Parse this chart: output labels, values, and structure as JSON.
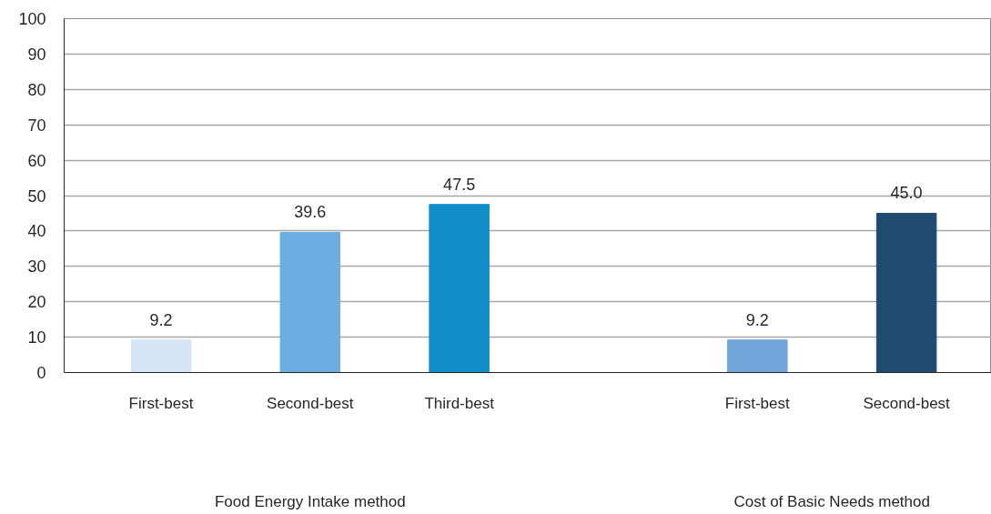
{
  "chart_data": {
    "type": "bar",
    "categories": [
      "First-best",
      "Second-best",
      "Third-best",
      null,
      "First-best",
      "Second-best"
    ],
    "values": [
      9.2,
      39.6,
      47.5,
      null,
      9.2,
      45.0
    ],
    "value_labels": [
      "9.2",
      "39.6",
      "47.5",
      null,
      "9.2",
      "45.0"
    ],
    "colors": [
      "#d5e5f5",
      "#6aade0",
      "#0f8ec9",
      null,
      "#72a5d9",
      "#1f4b70"
    ],
    "ylim": [
      0,
      100
    ],
    "yticks": [
      0,
      10,
      20,
      30,
      40,
      50,
      60,
      70,
      80,
      90,
      100
    ],
    "grid": "y",
    "annotations": [
      "Food Energy Intake method",
      "Cost of Basic Needs method"
    ]
  }
}
